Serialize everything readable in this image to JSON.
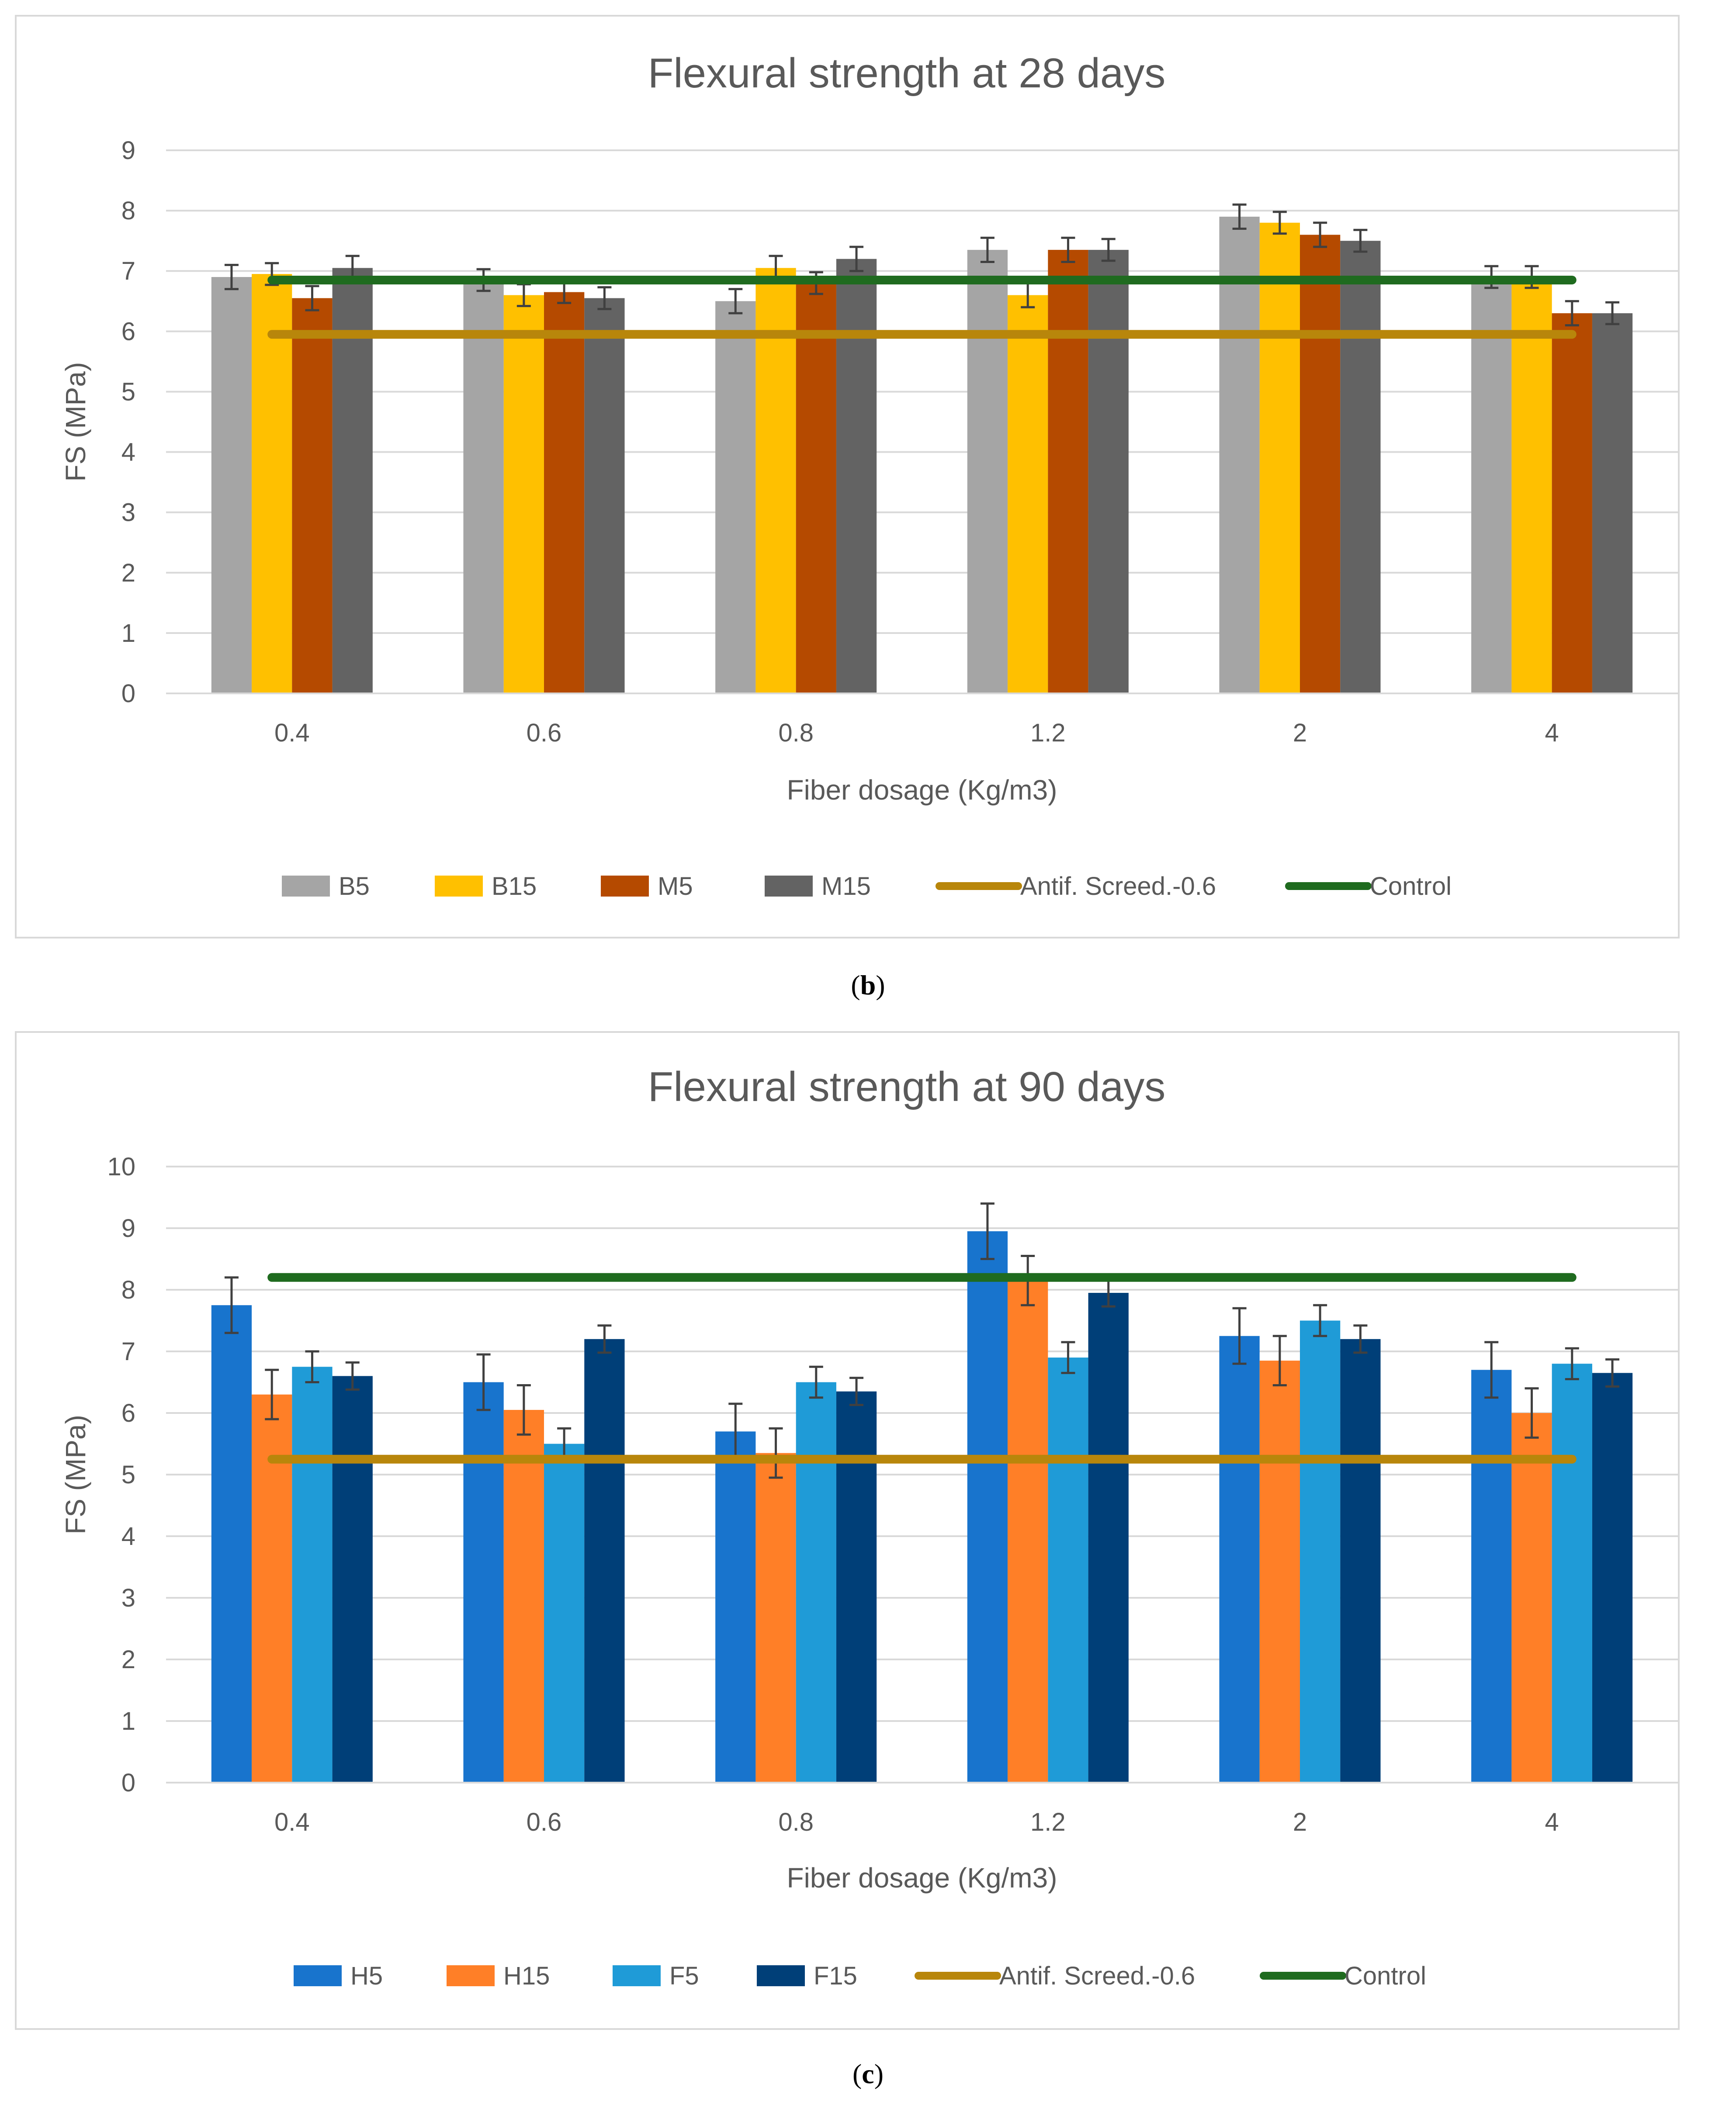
{
  "chart_data": [
    {
      "type": "bar",
      "title": "Flexural strength at 28 days",
      "xlabel": "Fiber dosage (Kg/m3)",
      "ylabel": "FS (MPa)",
      "ylim": [
        0,
        9
      ],
      "yticks": [
        0,
        1,
        2,
        3,
        4,
        5,
        6,
        7,
        8,
        9
      ],
      "categories": [
        "0.4",
        "0.6",
        "0.8",
        "1.2",
        "2",
        "4"
      ],
      "grid": true,
      "legend_position": "bottom",
      "series": [
        {
          "name": "B5",
          "color": "#a5a5a5",
          "values": [
            6.9,
            6.85,
            6.5,
            7.35,
            7.9,
            6.9
          ],
          "errors": [
            0.2,
            0.18,
            0.2,
            0.2,
            0.2,
            0.18
          ]
        },
        {
          "name": "B15",
          "color": "#ffc000",
          "values": [
            6.95,
            6.6,
            7.05,
            6.6,
            7.8,
            6.9
          ],
          "errors": [
            0.18,
            0.18,
            0.2,
            0.2,
            0.18,
            0.18
          ]
        },
        {
          "name": "M5",
          "color": "#b54a00",
          "values": [
            6.55,
            6.65,
            6.8,
            7.35,
            7.6,
            6.3
          ],
          "errors": [
            0.2,
            0.18,
            0.18,
            0.2,
            0.2,
            0.2
          ]
        },
        {
          "name": "M15",
          "color": "#636363",
          "values": [
            7.05,
            6.55,
            7.2,
            7.35,
            7.5,
            6.3
          ],
          "errors": [
            0.2,
            0.18,
            0.2,
            0.18,
            0.18,
            0.18
          ]
        }
      ],
      "lines": [
        {
          "name": "Antif. Screed.-0.6",
          "color": "#b8860b",
          "value": 5.95
        },
        {
          "name": "Control",
          "color": "#1f6b1f",
          "value": 6.85
        }
      ],
      "caption": "b"
    },
    {
      "type": "bar",
      "title": "Flexural strength at 90 days",
      "xlabel": "Fiber dosage (Kg/m3)",
      "ylabel": "FS (MPa)",
      "ylim": [
        0,
        10
      ],
      "yticks": [
        0,
        1,
        2,
        3,
        4,
        5,
        6,
        7,
        8,
        9,
        10
      ],
      "categories": [
        "0.4",
        "0.6",
        "0.8",
        "1.2",
        "2",
        "4"
      ],
      "grid": true,
      "legend_position": "bottom",
      "series": [
        {
          "name": "H5",
          "color": "#1874cd",
          "values": [
            7.75,
            6.5,
            5.7,
            8.95,
            7.25,
            6.7
          ],
          "errors": [
            0.45,
            0.45,
            0.45,
            0.45,
            0.45,
            0.45
          ]
        },
        {
          "name": "H15",
          "color": "#ff7f27",
          "values": [
            6.3,
            6.05,
            5.35,
            8.15,
            6.85,
            6.0
          ],
          "errors": [
            0.4,
            0.4,
            0.4,
            0.4,
            0.4,
            0.4
          ]
        },
        {
          "name": "F5",
          "color": "#1f9bd7",
          "values": [
            6.75,
            5.5,
            6.5,
            6.9,
            7.5,
            6.8
          ],
          "errors": [
            0.25,
            0.25,
            0.25,
            0.25,
            0.25,
            0.25
          ]
        },
        {
          "name": "F15",
          "color": "#003f78",
          "values": [
            6.6,
            7.2,
            6.35,
            7.95,
            7.2,
            6.65
          ],
          "errors": [
            0.22,
            0.22,
            0.22,
            0.22,
            0.22,
            0.22
          ]
        }
      ],
      "lines": [
        {
          "name": "Antif. Screed.-0.6",
          "color": "#b8860b",
          "value": 5.25
        },
        {
          "name": "Control",
          "color": "#1f6b1f",
          "value": 8.2
        }
      ],
      "caption": "c"
    }
  ]
}
